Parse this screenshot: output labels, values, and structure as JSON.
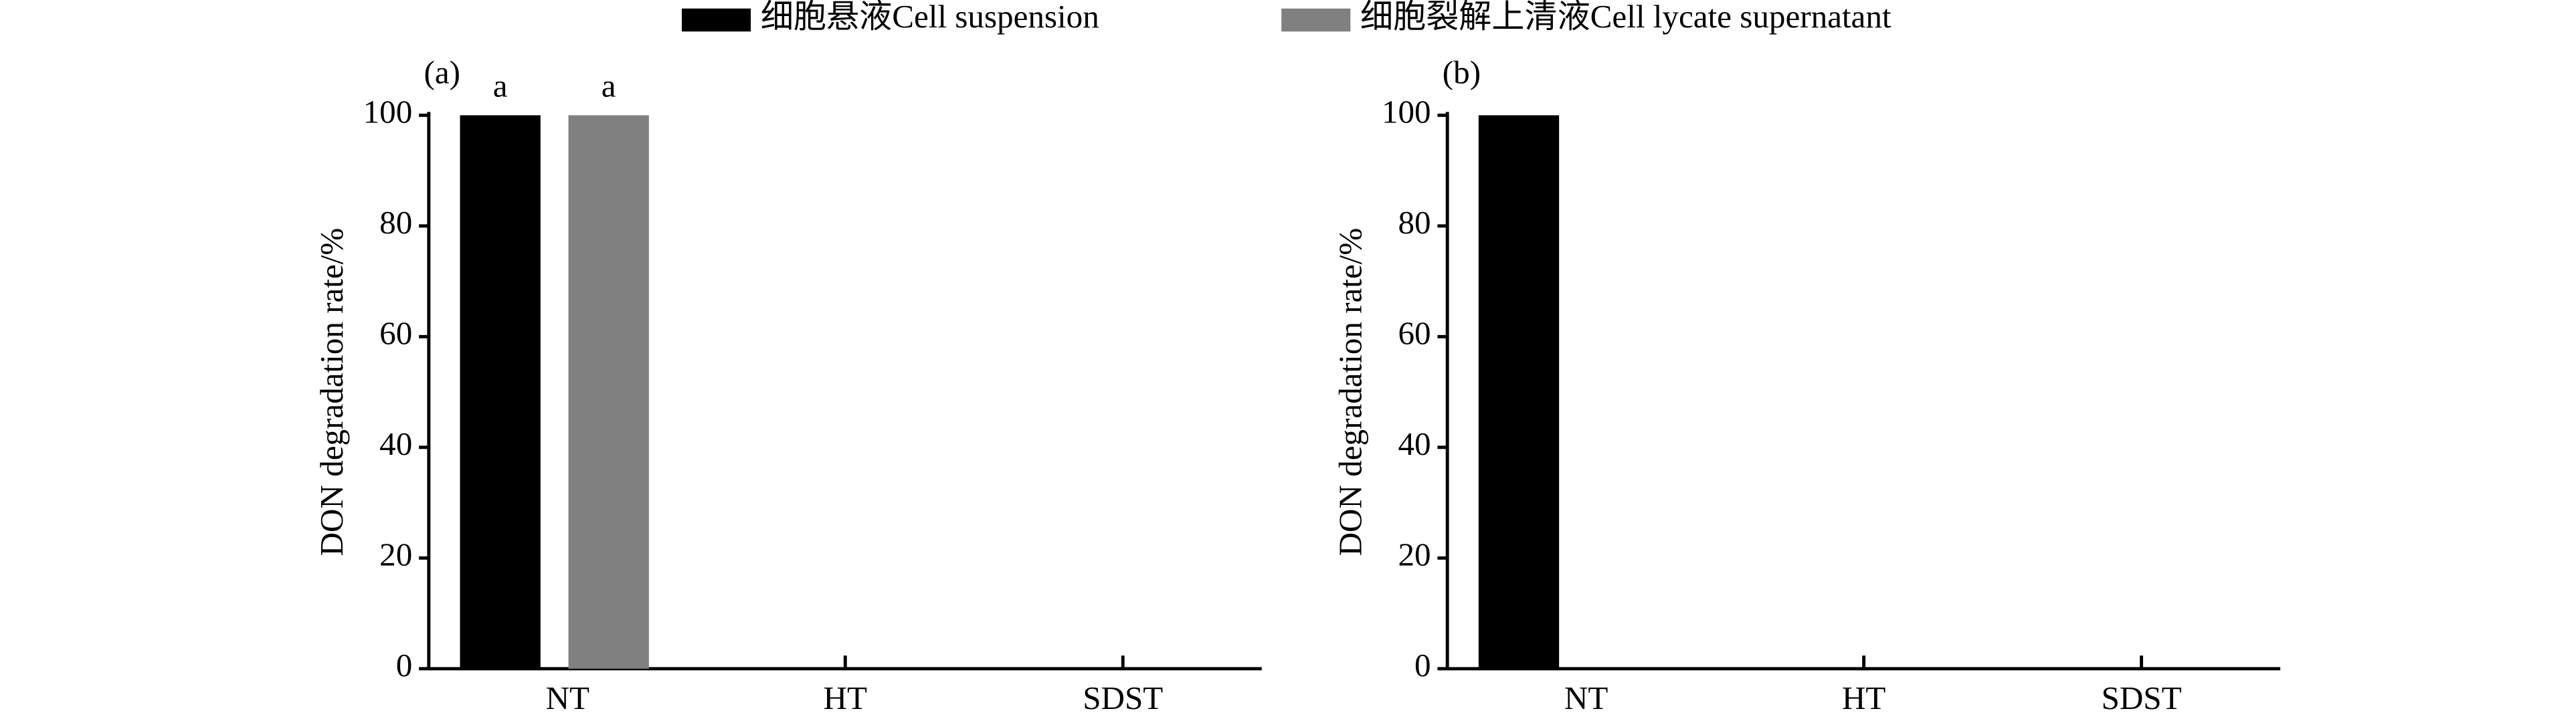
{
  "chart_data": [
    {
      "type": "bar",
      "panel_label": "(a)",
      "ylabel": "DON degradation rate/%",
      "categories": [
        "NT",
        "HT",
        "SDST"
      ],
      "series": [
        {
          "name": "细胞悬液Cell suspension",
          "color": "#000000",
          "values": [
            100,
            0,
            0
          ],
          "labels": [
            "a",
            null,
            null
          ]
        },
        {
          "name": "细胞裂解上清液Cell lycate supernatant",
          "color": "#808080",
          "values": [
            100,
            0,
            0
          ],
          "labels": [
            "a",
            null,
            null
          ]
        }
      ],
      "ylim": [
        0,
        100
      ],
      "yticks": [
        0,
        20,
        40,
        60,
        80,
        100
      ],
      "legend": "top"
    },
    {
      "type": "bar",
      "panel_label": "(b)",
      "ylabel": "DON degradation rate/%",
      "categories": [
        "NT",
        "HT",
        "SDST"
      ],
      "values": [
        100,
        0,
        0
      ],
      "color": "#000000",
      "ylim": [
        0,
        100
      ],
      "yticks": [
        0,
        20,
        40,
        60,
        80,
        100
      ]
    }
  ]
}
